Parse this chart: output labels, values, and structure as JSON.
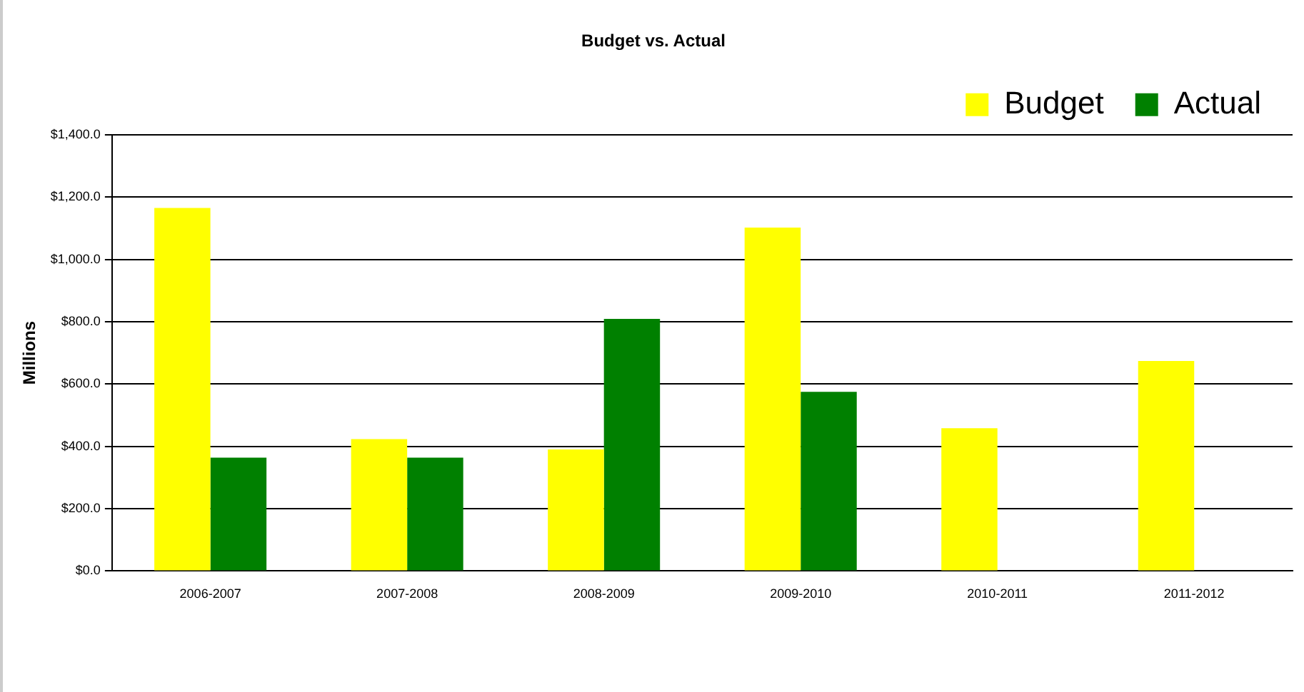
{
  "chart_data": {
    "type": "bar",
    "title": "Budget vs. Actual",
    "ylabel": "Millions",
    "categories": [
      "2006-2007",
      "2007-2008",
      "2008-2009",
      "2009-2010",
      "2010-2011",
      "2011-2012"
    ],
    "series": [
      {
        "name": "Budget",
        "color": "#ffff00",
        "values": [
          1165,
          423,
          390,
          1102,
          458,
          674
        ]
      },
      {
        "name": "Actual",
        "color": "#008000",
        "values": [
          364,
          364,
          809,
          575,
          null,
          null
        ]
      }
    ],
    "ylim": [
      0,
      1400
    ],
    "yticks": [
      {
        "value": 0,
        "label": "$0.0"
      },
      {
        "value": 200,
        "label": "$200.0"
      },
      {
        "value": 400,
        "label": "$400.0"
      },
      {
        "value": 600,
        "label": "$600.0"
      },
      {
        "value": 800,
        "label": "$800.0"
      },
      {
        "value": 1000,
        "label": "$1,000.0"
      },
      {
        "value": 1200,
        "label": "$1,200.0"
      },
      {
        "value": 1400,
        "label": "$1,400.0"
      }
    ],
    "grid": "y",
    "legend": "top right"
  }
}
